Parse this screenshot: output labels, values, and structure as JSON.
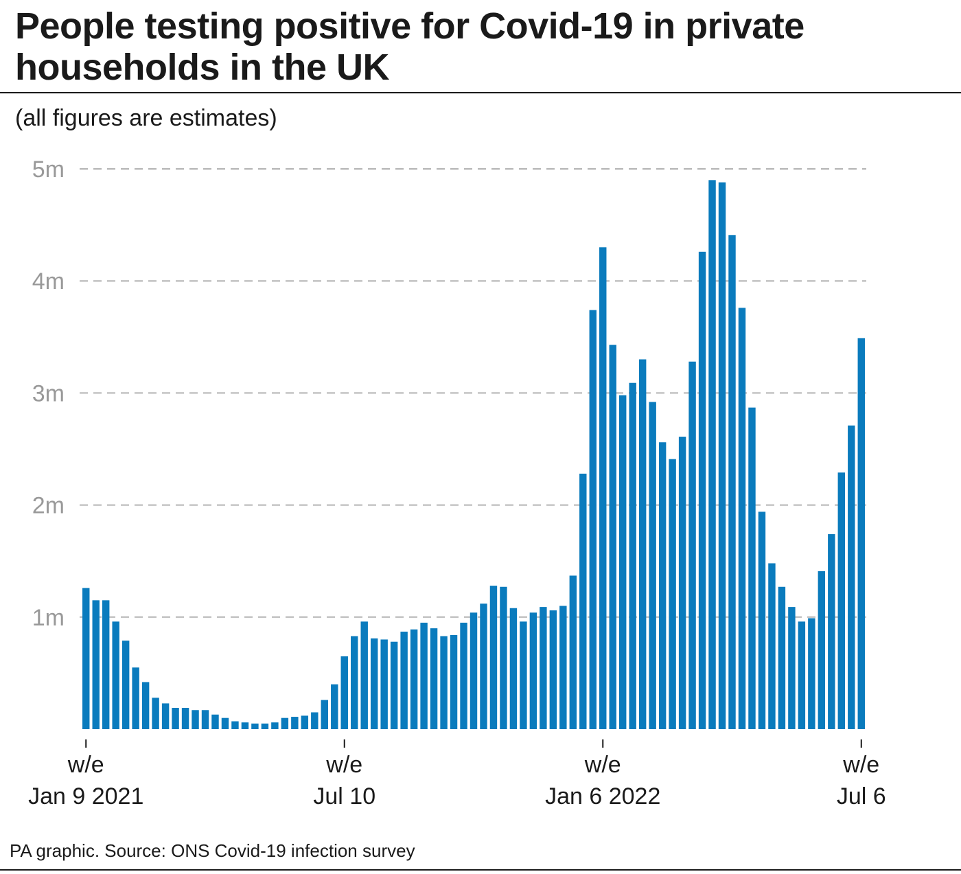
{
  "header": {
    "title": "People testing positive for Covid-19 in private households in the UK",
    "subtitle": "(all figures are estimates)"
  },
  "footer": {
    "source": "PA graphic. Source: ONS Covid-19 infection survey"
  },
  "colors": {
    "bar": "#0a7bbd",
    "grid": "#b3b3b3",
    "ytick_text": "#999999",
    "text": "#1a1a1a"
  },
  "chart_data": {
    "type": "bar",
    "title": "People testing positive for Covid-19 in private households in the UK",
    "subtitle": "(all figures are estimates)",
    "xlabel": "",
    "ylabel": "",
    "ylim": [
      0,
      5000000
    ],
    "grid": "horizontal dashed",
    "yticks": [
      {
        "value": 1000000,
        "label": "1m"
      },
      {
        "value": 2000000,
        "label": "2m"
      },
      {
        "value": 3000000,
        "label": "3m"
      },
      {
        "value": 4000000,
        "label": "4m"
      },
      {
        "value": 5000000,
        "label": "5m"
      }
    ],
    "xticks": [
      {
        "index": 0,
        "label": [
          "w/e",
          "Jan 9 2021"
        ]
      },
      {
        "index": 26,
        "label": [
          "w/e",
          "Jul 10"
        ]
      },
      {
        "index": 52,
        "label": [
          "w/e",
          "Jan 6 2022"
        ]
      },
      {
        "index": 78,
        "label": [
          "w/e",
          "Jul 6"
        ]
      }
    ],
    "values": [
      1260000,
      1150000,
      1150000,
      960000,
      790000,
      550000,
      420000,
      280000,
      230000,
      190000,
      190000,
      170000,
      170000,
      130000,
      100000,
      70000,
      60000,
      50000,
      50000,
      60000,
      100000,
      110000,
      120000,
      150000,
      260000,
      400000,
      650000,
      830000,
      960000,
      810000,
      800000,
      780000,
      870000,
      890000,
      950000,
      900000,
      830000,
      840000,
      950000,
      1040000,
      1120000,
      1280000,
      1270000,
      1080000,
      960000,
      1040000,
      1090000,
      1060000,
      1100000,
      1370000,
      2280000,
      3740000,
      4300000,
      3430000,
      2980000,
      3090000,
      3300000,
      2920000,
      2560000,
      2410000,
      2610000,
      3280000,
      4260000,
      4900000,
      4880000,
      4410000,
      3760000,
      2870000,
      1940000,
      1480000,
      1270000,
      1090000,
      960000,
      990000,
      1410000,
      1740000,
      2290000,
      2710000,
      3490000
    ]
  }
}
